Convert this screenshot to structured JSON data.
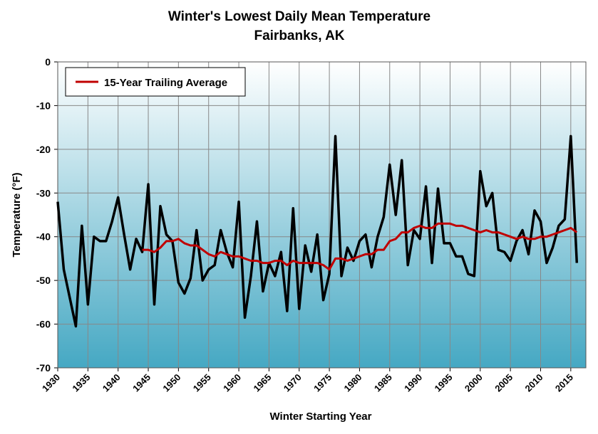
{
  "chart_data": {
    "type": "line",
    "title": "Winter's Lowest Daily Mean Temperature",
    "subtitle": "Fairbanks, AK",
    "x_label": "Winter Starting Year",
    "y_label": "Temperature (°F)",
    "x": [
      1930,
      1931,
      1932,
      1933,
      1934,
      1935,
      1936,
      1937,
      1938,
      1939,
      1940,
      1941,
      1942,
      1943,
      1944,
      1945,
      1946,
      1947,
      1948,
      1949,
      1950,
      1951,
      1952,
      1953,
      1954,
      1955,
      1956,
      1957,
      1958,
      1959,
      1960,
      1961,
      1962,
      1963,
      1964,
      1965,
      1966,
      1967,
      1968,
      1969,
      1970,
      1971,
      1972,
      1973,
      1974,
      1975,
      1976,
      1977,
      1978,
      1979,
      1980,
      1981,
      1982,
      1983,
      1984,
      1985,
      1986,
      1987,
      1988,
      1989,
      1990,
      1991,
      1992,
      1993,
      1994,
      1995,
      1996,
      1997,
      1998,
      1999,
      2000,
      2001,
      2002,
      2003,
      2004,
      2005,
      2006,
      2007,
      2008,
      2009,
      2010,
      2011,
      2012,
      2013,
      2014,
      2015,
      2016
    ],
    "series": [
      {
        "color": "#000000",
        "values": [
          -32,
          -47.5,
          -54,
          -60.5,
          -37.5,
          -55.5,
          -40,
          -41,
          -41,
          -36.5,
          -31,
          -39.5,
          -47.5,
          -40.5,
          -43.5,
          -28,
          -55.5,
          -33,
          -39.5,
          -41,
          -50.5,
          -53,
          -49.5,
          -38.5,
          -50,
          -47.5,
          -46.5,
          -38.5,
          -43.5,
          -47,
          -32,
          -58.5,
          -49,
          -36.5,
          -52.5,
          -46,
          -49,
          -43.5,
          -57,
          -33.5,
          -56.5,
          -42,
          -48,
          -39.5,
          -54.5,
          -48.5,
          -17,
          -49,
          -42.5,
          -45.5,
          -41,
          -39.5,
          -47,
          -40,
          -35.5,
          -23.5,
          -35,
          -22.5,
          -46.5,
          -38.5,
          -40.5,
          -28.5,
          -46,
          -29,
          -41.5,
          -41.5,
          -44.5,
          -44.5,
          -48.5,
          -49,
          -25,
          -33,
          -30,
          -43,
          -43.5,
          -45.5,
          -41,
          -38.5,
          -44,
          -34,
          -36.5,
          -46,
          -42.5,
          -37.5,
          -36,
          -17,
          -46
        ]
      },
      {
        "name": "15-Year Trailing Average",
        "color": "#c00000",
        "values": [
          null,
          null,
          null,
          null,
          null,
          null,
          null,
          null,
          null,
          null,
          null,
          null,
          null,
          null,
          -43,
          -43,
          -43.5,
          -42.5,
          -41,
          -41,
          -40.5,
          -41.5,
          -42,
          -42,
          -43,
          -44,
          -44.5,
          -43.5,
          -44,
          -44.5,
          -44.5,
          -45,
          -45.5,
          -45.5,
          -46,
          -46,
          -45.5,
          -45.5,
          -46.5,
          -45.5,
          -46,
          -46,
          -46,
          -46,
          -46.5,
          -47.5,
          -45,
          -45,
          -45.5,
          -45,
          -44.5,
          -44,
          -44,
          -43,
          -43,
          -41,
          -40.5,
          -39,
          -39,
          -38,
          -37.5,
          -38,
          -38,
          -37,
          -37,
          -37,
          -37.5,
          -37.5,
          -38,
          -38.5,
          -39,
          -38.5,
          -39,
          -39,
          -39.5,
          -40,
          -40.5,
          -40,
          -40.5,
          -40.5,
          -40,
          -40,
          -39.5,
          -39,
          -38.5,
          -38,
          -39
        ]
      }
    ],
    "xlim": [
      1930,
      2017.5
    ],
    "xticks": [
      1930,
      1935,
      1940,
      1945,
      1950,
      1955,
      1960,
      1965,
      1970,
      1975,
      1980,
      1985,
      1990,
      1995,
      2000,
      2005,
      2010,
      2015
    ],
    "ylim": [
      -70,
      0
    ],
    "yticks": [
      0,
      -10,
      -20,
      -30,
      -40,
      -50,
      -60,
      -70
    ],
    "grid": true,
    "legend": "upper left"
  }
}
